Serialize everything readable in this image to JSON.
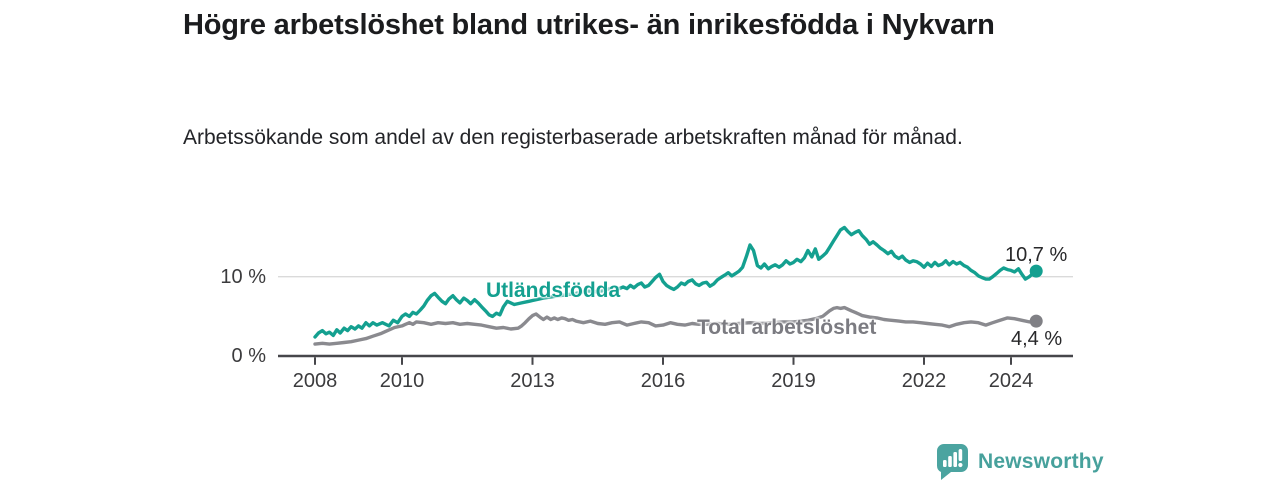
{
  "header": {
    "title": "Högre arbetslöshet bland utrikes- än inrikesfödda i Nykvarn",
    "subtitle": "Arbetssökande som andel av den registerbaserade arbetskraften månad för månad."
  },
  "footer": {
    "brand": "Newsworthy",
    "logo_icon": "bar-chart-speech-bubble-icon",
    "brand_color": "#47a19c"
  },
  "chart_data": {
    "type": "line",
    "unit": "%",
    "x_axis": {
      "ticks": [
        2008,
        2010,
        2013,
        2016,
        2019,
        2022,
        2024
      ],
      "labels": [
        "2008",
        "2010",
        "2013",
        "2016",
        "2019",
        "2022",
        "2024"
      ],
      "range": [
        2007.2,
        2025.4
      ],
      "grid": false
    },
    "y_axis": {
      "ticks": [
        {
          "value": 0,
          "label": "0 %"
        },
        {
          "value": 10,
          "label": "10 %"
        }
      ],
      "gridlines": [
        10
      ],
      "range": [
        0,
        17
      ]
    },
    "series": [
      {
        "name": "Utländsfödda",
        "color": "#14a090",
        "label_color": "#14a090",
        "dot_color": "#14a090",
        "end_value": 10.7,
        "end_label": "10,7 %",
        "points": [
          [
            2008.0,
            2.4
          ],
          [
            2008.08,
            2.9
          ],
          [
            2008.17,
            3.2
          ],
          [
            2008.25,
            2.8
          ],
          [
            2008.33,
            3.0
          ],
          [
            2008.42,
            2.6
          ],
          [
            2008.5,
            3.3
          ],
          [
            2008.58,
            2.9
          ],
          [
            2008.67,
            3.5
          ],
          [
            2008.75,
            3.2
          ],
          [
            2008.83,
            3.7
          ],
          [
            2008.92,
            3.4
          ],
          [
            2009.0,
            3.8
          ],
          [
            2009.08,
            3.5
          ],
          [
            2009.17,
            4.2
          ],
          [
            2009.25,
            3.8
          ],
          [
            2009.33,
            4.2
          ],
          [
            2009.42,
            3.9
          ],
          [
            2009.55,
            4.2
          ],
          [
            2009.7,
            3.8
          ],
          [
            2009.8,
            4.5
          ],
          [
            2009.9,
            4.2
          ],
          [
            2010.0,
            5.0
          ],
          [
            2010.08,
            5.3
          ],
          [
            2010.17,
            5.0
          ],
          [
            2010.25,
            5.5
          ],
          [
            2010.33,
            5.3
          ],
          [
            2010.42,
            5.8
          ],
          [
            2010.5,
            6.3
          ],
          [
            2010.58,
            7.0
          ],
          [
            2010.67,
            7.6
          ],
          [
            2010.75,
            7.9
          ],
          [
            2010.83,
            7.4
          ],
          [
            2010.92,
            6.9
          ],
          [
            2011.0,
            6.6
          ],
          [
            2011.08,
            7.2
          ],
          [
            2011.17,
            7.6
          ],
          [
            2011.25,
            7.1
          ],
          [
            2011.33,
            6.7
          ],
          [
            2011.42,
            7.3
          ],
          [
            2011.5,
            7.0
          ],
          [
            2011.58,
            6.6
          ],
          [
            2011.67,
            7.1
          ],
          [
            2011.75,
            6.7
          ],
          [
            2011.83,
            6.2
          ],
          [
            2011.92,
            5.7
          ],
          [
            2012.0,
            5.2
          ],
          [
            2012.08,
            5.0
          ],
          [
            2012.17,
            5.4
          ],
          [
            2012.25,
            5.2
          ],
          [
            2012.33,
            6.2
          ],
          [
            2012.42,
            6.9
          ],
          [
            2012.58,
            6.5
          ],
          [
            2012.75,
            6.7
          ],
          [
            2012.92,
            6.9
          ],
          [
            2013.0,
            7.0
          ],
          [
            2013.25,
            7.3
          ],
          [
            2013.5,
            7.5
          ],
          [
            2013.75,
            7.7
          ],
          [
            2014.0,
            7.9
          ],
          [
            2014.25,
            8.2
          ],
          [
            2014.5,
            8.1
          ],
          [
            2014.67,
            8.3
          ],
          [
            2014.83,
            8.6
          ],
          [
            2015.0,
            8.5
          ],
          [
            2015.08,
            8.7
          ],
          [
            2015.17,
            8.5
          ],
          [
            2015.25,
            8.9
          ],
          [
            2015.33,
            8.6
          ],
          [
            2015.42,
            9.0
          ],
          [
            2015.5,
            9.2
          ],
          [
            2015.58,
            8.7
          ],
          [
            2015.67,
            8.9
          ],
          [
            2015.75,
            9.4
          ],
          [
            2015.83,
            9.9
          ],
          [
            2015.92,
            10.3
          ],
          [
            2016.0,
            9.4
          ],
          [
            2016.08,
            8.9
          ],
          [
            2016.17,
            8.6
          ],
          [
            2016.25,
            8.4
          ],
          [
            2016.33,
            8.7
          ],
          [
            2016.42,
            9.2
          ],
          [
            2016.5,
            9.0
          ],
          [
            2016.58,
            9.4
          ],
          [
            2016.67,
            9.6
          ],
          [
            2016.75,
            9.1
          ],
          [
            2016.83,
            8.9
          ],
          [
            2016.92,
            9.2
          ],
          [
            2017.0,
            9.3
          ],
          [
            2017.08,
            8.8
          ],
          [
            2017.17,
            9.1
          ],
          [
            2017.25,
            9.6
          ],
          [
            2017.33,
            9.9
          ],
          [
            2017.42,
            10.2
          ],
          [
            2017.5,
            10.5
          ],
          [
            2017.58,
            10.1
          ],
          [
            2017.67,
            10.4
          ],
          [
            2017.75,
            10.7
          ],
          [
            2017.83,
            11.2
          ],
          [
            2017.92,
            12.6
          ],
          [
            2018.0,
            14.0
          ],
          [
            2018.08,
            13.3
          ],
          [
            2018.17,
            11.4
          ],
          [
            2018.25,
            11.1
          ],
          [
            2018.33,
            11.6
          ],
          [
            2018.42,
            11.0
          ],
          [
            2018.5,
            11.3
          ],
          [
            2018.58,
            11.5
          ],
          [
            2018.67,
            11.2
          ],
          [
            2018.75,
            11.5
          ],
          [
            2018.83,
            12.0
          ],
          [
            2018.92,
            11.6
          ],
          [
            2019.0,
            11.8
          ],
          [
            2019.08,
            12.2
          ],
          [
            2019.17,
            11.9
          ],
          [
            2019.25,
            12.4
          ],
          [
            2019.33,
            13.3
          ],
          [
            2019.42,
            12.5
          ],
          [
            2019.5,
            13.5
          ],
          [
            2019.58,
            12.2
          ],
          [
            2019.67,
            12.6
          ],
          [
            2019.75,
            13.0
          ],
          [
            2019.83,
            13.7
          ],
          [
            2019.92,
            14.5
          ],
          [
            2020.0,
            15.2
          ],
          [
            2020.08,
            15.9
          ],
          [
            2020.17,
            16.2
          ],
          [
            2020.25,
            15.7
          ],
          [
            2020.33,
            15.3
          ],
          [
            2020.42,
            15.6
          ],
          [
            2020.5,
            15.8
          ],
          [
            2020.58,
            15.2
          ],
          [
            2020.67,
            14.7
          ],
          [
            2020.75,
            14.1
          ],
          [
            2020.83,
            14.4
          ],
          [
            2020.92,
            14.0
          ],
          [
            2021.0,
            13.6
          ],
          [
            2021.08,
            13.3
          ],
          [
            2021.17,
            12.9
          ],
          [
            2021.25,
            13.2
          ],
          [
            2021.33,
            12.6
          ],
          [
            2021.42,
            12.3
          ],
          [
            2021.5,
            12.6
          ],
          [
            2021.58,
            12.1
          ],
          [
            2021.67,
            11.8
          ],
          [
            2021.75,
            12.0
          ],
          [
            2021.83,
            11.9
          ],
          [
            2021.92,
            11.6
          ],
          [
            2022.0,
            11.2
          ],
          [
            2022.08,
            11.7
          ],
          [
            2022.17,
            11.3
          ],
          [
            2022.25,
            11.8
          ],
          [
            2022.33,
            11.4
          ],
          [
            2022.42,
            11.6
          ],
          [
            2022.5,
            12.0
          ],
          [
            2022.58,
            11.5
          ],
          [
            2022.67,
            11.9
          ],
          [
            2022.75,
            11.6
          ],
          [
            2022.83,
            11.8
          ],
          [
            2022.92,
            11.4
          ],
          [
            2023.0,
            11.2
          ],
          [
            2023.08,
            10.8
          ],
          [
            2023.17,
            10.5
          ],
          [
            2023.25,
            10.1
          ],
          [
            2023.33,
            9.9
          ],
          [
            2023.42,
            9.7
          ],
          [
            2023.5,
            9.7
          ],
          [
            2023.58,
            10.0
          ],
          [
            2023.67,
            10.4
          ],
          [
            2023.75,
            10.8
          ],
          [
            2023.83,
            11.1
          ],
          [
            2023.92,
            10.9
          ],
          [
            2024.0,
            10.8
          ],
          [
            2024.08,
            10.6
          ],
          [
            2024.17,
            11.0
          ],
          [
            2024.25,
            10.3
          ],
          [
            2024.33,
            9.7
          ],
          [
            2024.42,
            10.0
          ],
          [
            2024.5,
            10.4
          ],
          [
            2024.58,
            10.7
          ]
        ]
      },
      {
        "name": "Total arbetslöshet",
        "color": "#8a8a8f",
        "label_color": "#7b7b81",
        "dot_color": "#808085",
        "end_value": 4.4,
        "end_label": "4,4 %",
        "points": [
          [
            2008.0,
            1.5
          ],
          [
            2008.17,
            1.6
          ],
          [
            2008.33,
            1.5
          ],
          [
            2008.5,
            1.6
          ],
          [
            2008.67,
            1.7
          ],
          [
            2008.83,
            1.8
          ],
          [
            2009.0,
            2.0
          ],
          [
            2009.17,
            2.2
          ],
          [
            2009.33,
            2.5
          ],
          [
            2009.5,
            2.8
          ],
          [
            2009.67,
            3.2
          ],
          [
            2009.83,
            3.6
          ],
          [
            2010.0,
            3.8
          ],
          [
            2010.08,
            4.0
          ],
          [
            2010.17,
            4.2
          ],
          [
            2010.25,
            4.0
          ],
          [
            2010.33,
            4.3
          ],
          [
            2010.5,
            4.2
          ],
          [
            2010.67,
            4.0
          ],
          [
            2010.83,
            4.2
          ],
          [
            2011.0,
            4.1
          ],
          [
            2011.17,
            4.2
          ],
          [
            2011.33,
            4.0
          ],
          [
            2011.5,
            4.1
          ],
          [
            2011.67,
            4.0
          ],
          [
            2011.83,
            3.9
          ],
          [
            2012.0,
            3.7
          ],
          [
            2012.17,
            3.5
          ],
          [
            2012.33,
            3.6
          ],
          [
            2012.5,
            3.4
          ],
          [
            2012.67,
            3.5
          ],
          [
            2012.75,
            3.8
          ],
          [
            2012.83,
            4.2
          ],
          [
            2012.92,
            4.7
          ],
          [
            2013.0,
            5.1
          ],
          [
            2013.08,
            5.3
          ],
          [
            2013.17,
            4.9
          ],
          [
            2013.25,
            4.6
          ],
          [
            2013.33,
            4.9
          ],
          [
            2013.42,
            4.6
          ],
          [
            2013.5,
            4.8
          ],
          [
            2013.58,
            4.6
          ],
          [
            2013.67,
            4.8
          ],
          [
            2013.75,
            4.7
          ],
          [
            2013.83,
            4.5
          ],
          [
            2013.92,
            4.6
          ],
          [
            2014.0,
            4.4
          ],
          [
            2014.17,
            4.2
          ],
          [
            2014.33,
            4.4
          ],
          [
            2014.5,
            4.1
          ],
          [
            2014.67,
            4.0
          ],
          [
            2014.83,
            4.2
          ],
          [
            2015.0,
            4.3
          ],
          [
            2015.17,
            3.9
          ],
          [
            2015.33,
            4.1
          ],
          [
            2015.5,
            4.3
          ],
          [
            2015.67,
            4.2
          ],
          [
            2015.83,
            3.8
          ],
          [
            2016.0,
            3.9
          ],
          [
            2016.17,
            4.2
          ],
          [
            2016.33,
            4.0
          ],
          [
            2016.5,
            3.9
          ],
          [
            2016.67,
            4.1
          ],
          [
            2016.83,
            4.0
          ],
          [
            2017.0,
            4.0
          ],
          [
            2017.25,
            4.1
          ],
          [
            2017.5,
            4.0
          ],
          [
            2017.75,
            4.1
          ],
          [
            2018.0,
            4.2
          ],
          [
            2018.25,
            4.1
          ],
          [
            2018.5,
            4.2
          ],
          [
            2018.75,
            4.3
          ],
          [
            2019.0,
            4.3
          ],
          [
            2019.17,
            4.4
          ],
          [
            2019.33,
            4.5
          ],
          [
            2019.5,
            4.7
          ],
          [
            2019.67,
            5.0
          ],
          [
            2019.83,
            5.7
          ],
          [
            2019.92,
            6.0
          ],
          [
            2020.0,
            6.1
          ],
          [
            2020.08,
            6.0
          ],
          [
            2020.17,
            6.1
          ],
          [
            2020.25,
            5.9
          ],
          [
            2020.33,
            5.7
          ],
          [
            2020.42,
            5.5
          ],
          [
            2020.5,
            5.3
          ],
          [
            2020.58,
            5.1
          ],
          [
            2020.75,
            4.9
          ],
          [
            2020.92,
            4.8
          ],
          [
            2021.08,
            4.6
          ],
          [
            2021.25,
            4.5
          ],
          [
            2021.42,
            4.4
          ],
          [
            2021.58,
            4.3
          ],
          [
            2021.75,
            4.3
          ],
          [
            2021.92,
            4.2
          ],
          [
            2022.08,
            4.1
          ],
          [
            2022.25,
            4.0
          ],
          [
            2022.42,
            3.9
          ],
          [
            2022.58,
            3.7
          ],
          [
            2022.75,
            4.0
          ],
          [
            2022.92,
            4.2
          ],
          [
            2023.08,
            4.3
          ],
          [
            2023.25,
            4.2
          ],
          [
            2023.42,
            3.9
          ],
          [
            2023.58,
            4.2
          ],
          [
            2023.75,
            4.5
          ],
          [
            2023.92,
            4.8
          ],
          [
            2024.08,
            4.7
          ],
          [
            2024.25,
            4.5
          ],
          [
            2024.42,
            4.3
          ],
          [
            2024.58,
            4.4
          ]
        ]
      }
    ]
  }
}
